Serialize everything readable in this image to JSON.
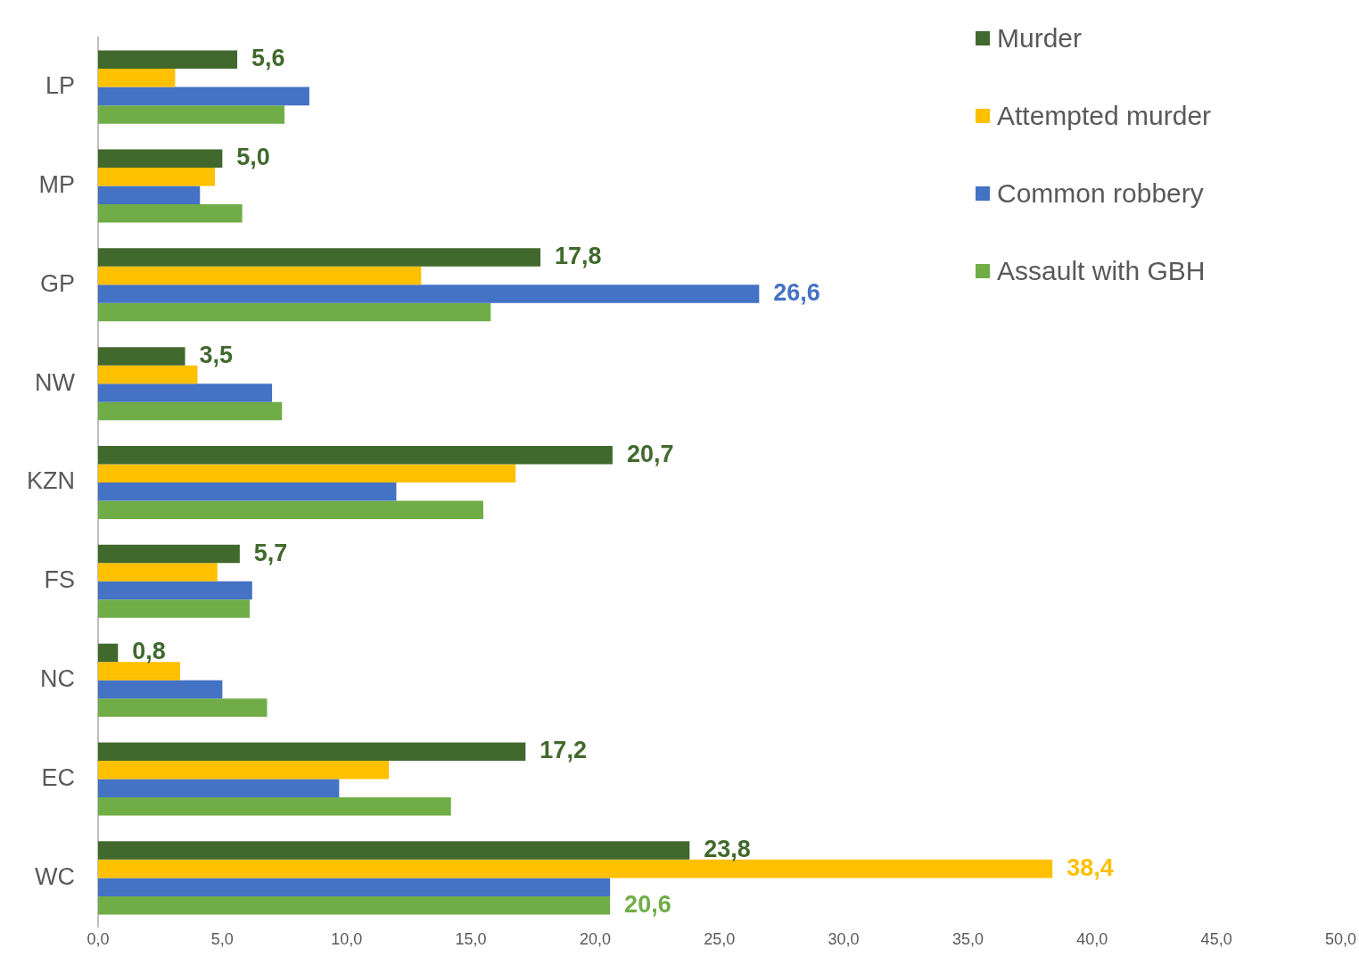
{
  "chart_data": {
    "type": "bar",
    "orientation": "horizontal",
    "categories": [
      "LP",
      "MP",
      "GP",
      "NW",
      "KZN",
      "FS",
      "NC",
      "EC",
      "WC"
    ],
    "series": [
      {
        "name": "Murder",
        "color": "#41692d",
        "values": [
          5.6,
          5.0,
          17.8,
          3.5,
          20.7,
          5.7,
          0.8,
          17.2,
          23.8
        ],
        "value_labels": [
          "5,6",
          "5,0",
          "17,8",
          "3,5",
          "20,7",
          "5,7",
          "0,8",
          "17,2",
          "23,8"
        ]
      },
      {
        "name": "Attempted murder",
        "color": "#ffc000",
        "values": [
          3.1,
          4.7,
          13.0,
          4.0,
          16.8,
          4.8,
          3.3,
          11.7,
          38.4
        ],
        "value_labels": [
          null,
          null,
          null,
          null,
          null,
          null,
          null,
          null,
          "38,4"
        ]
      },
      {
        "name": "Common robbery",
        "color": "#4472c4",
        "values": [
          8.5,
          4.1,
          26.6,
          7.0,
          12.0,
          6.2,
          5.0,
          9.7,
          20.6
        ],
        "value_labels": [
          null,
          null,
          "26,6",
          null,
          null,
          null,
          null,
          null,
          null
        ]
      },
      {
        "name": "Assault with GBH",
        "color": "#70ad47",
        "values": [
          7.5,
          5.8,
          15.8,
          7.4,
          15.5,
          6.1,
          6.8,
          14.2,
          20.6
        ],
        "value_labels": [
          null,
          null,
          null,
          null,
          null,
          null,
          null,
          null,
          "20,6"
        ]
      }
    ],
    "xlim": [
      0,
      50
    ],
    "xticks": [
      {
        "value": 0,
        "label": "0,0"
      },
      {
        "value": 5,
        "label": "5,0"
      },
      {
        "value": 10,
        "label": "10,0"
      },
      {
        "value": 15,
        "label": "15,0"
      },
      {
        "value": 20,
        "label": "20,0"
      },
      {
        "value": 25,
        "label": "25,0"
      },
      {
        "value": 30,
        "label": "30,0"
      },
      {
        "value": 35,
        "label": "35,0"
      },
      {
        "value": 40,
        "label": "40,0"
      },
      {
        "value": 45,
        "label": "45,0"
      },
      {
        "value": 50,
        "label": "50,0"
      }
    ],
    "grid": false,
    "legend": "top right"
  }
}
